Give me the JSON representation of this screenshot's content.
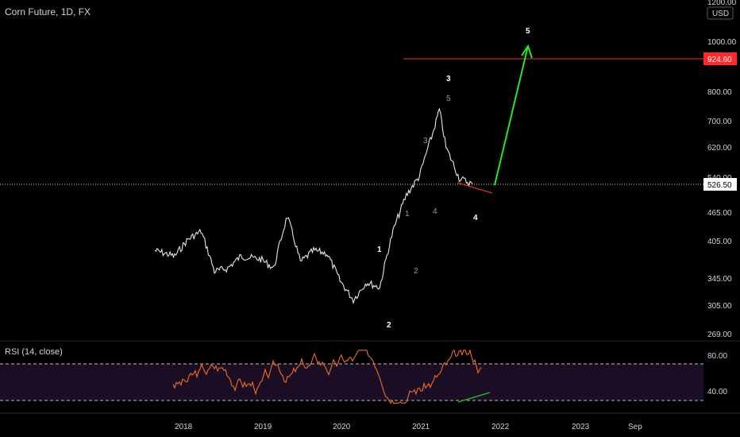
{
  "header": {
    "symbol_line": "Corn Future, 1D, FX"
  },
  "price_axis": {
    "currency": "USD",
    "ticks": [
      "1200.00",
      "1000.00",
      "800.00",
      "700.00",
      "620.00",
      "540.00",
      "465.00",
      "405.00",
      "345.00",
      "305.00",
      "269.00"
    ],
    "current_price_label": "526.50",
    "target_price_label": "924.60",
    "current_price": 526.5,
    "target_price": 924.6
  },
  "time_axis": {
    "labels": [
      "2018",
      "2019",
      "2020",
      "2021",
      "2022",
      "2023",
      "Sep"
    ]
  },
  "rsi": {
    "title": "RSI (14, close)",
    "ticks": [
      "80.00",
      "40.00"
    ],
    "upper_band": 70,
    "lower_band": 30
  },
  "wave_labels": {
    "major": [
      "1",
      "2",
      "3",
      "4",
      "5"
    ],
    "minor": [
      "1",
      "2",
      "3",
      "4",
      "5"
    ]
  },
  "colors": {
    "background": "#000000",
    "price_line": "#e6e6e6",
    "rsi_line": "#f26d21",
    "rsi_band_fill": "#1a0d24",
    "target_line": "#ff2a2a",
    "target_badge": "#ff2a2a",
    "projection_arrow": "#22e822",
    "divergence_price": "#e03030",
    "divergence_rsi": "#22c822",
    "current_badge": "#ffffff"
  },
  "chart_data": {
    "type": "line",
    "x": [
      "2017-10",
      "2018-01",
      "2018-03",
      "2018-05",
      "2018-07",
      "2018-09",
      "2018-11",
      "2019-02",
      "2019-04",
      "2019-06",
      "2019-08",
      "2019-10",
      "2019-12",
      "2020-02",
      "2020-04",
      "2020-06",
      "2020-08",
      "2020-10",
      "2020-12",
      "2021-02",
      "2021-04",
      "2021-05",
      "2021-06",
      "2021-08",
      "2021-10"
    ],
    "series": [
      {
        "values": [
          390,
          380,
          410,
          425,
          355,
          360,
          380,
          375,
          360,
          455,
          370,
          390,
          385,
          340,
          312,
          338,
          330,
          425,
          500,
          545,
          660,
          735,
          620,
          540,
          526
        ]
      }
    ],
    "ylabel": "USD",
    "ylim": [
      269,
      1200
    ],
    "scale": "log"
  }
}
